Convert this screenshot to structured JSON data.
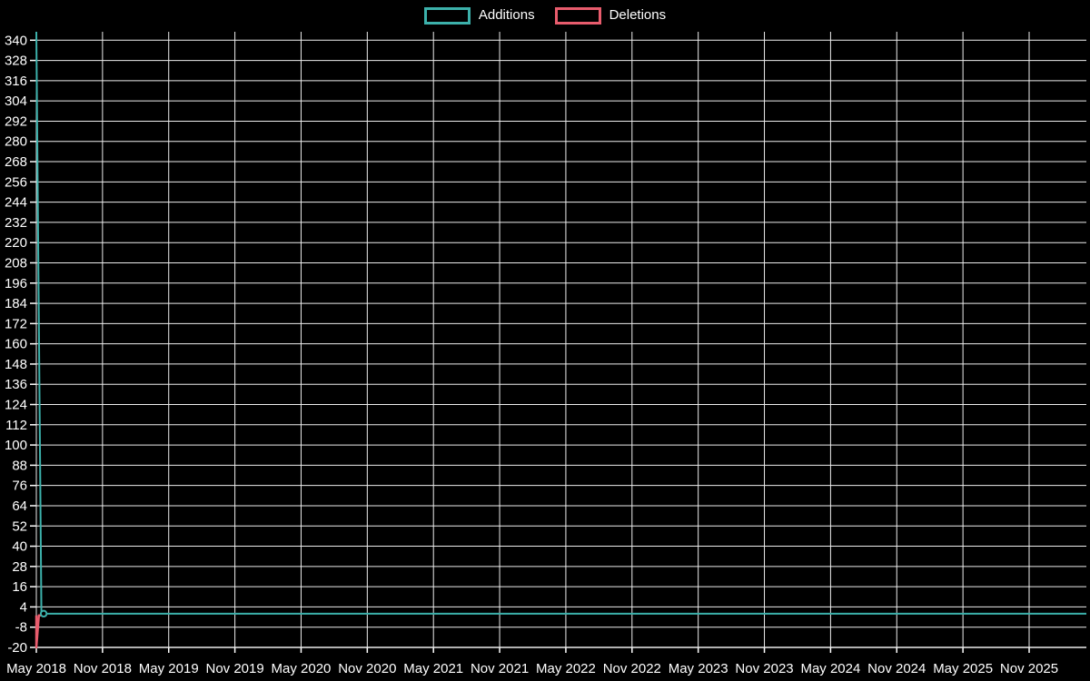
{
  "legend": {
    "items": [
      {
        "label": "Additions",
        "color": "#3cb1ab"
      },
      {
        "label": "Deletions",
        "color": "#e85c6d"
      }
    ]
  },
  "chart_data": {
    "type": "line",
    "title": "",
    "xlabel": "",
    "ylabel": "",
    "background_color": "#000000",
    "grid_color": "#ededed",
    "text_color": "#ffffff",
    "grid": "on",
    "legend_position": "top-center",
    "ylim": [
      -20,
      345
    ],
    "y_ticks": [
      340,
      328,
      316,
      304,
      292,
      280,
      268,
      256,
      244,
      232,
      220,
      208,
      196,
      184,
      172,
      160,
      148,
      136,
      124,
      112,
      100,
      88,
      76,
      64,
      52,
      40,
      28,
      16,
      4,
      -8,
      -20
    ],
    "x_tick_labels": [
      "May 2018",
      "Nov 2018",
      "May 2019",
      "Nov 2019",
      "May 2020",
      "Nov 2020",
      "May 2021",
      "Nov 2021",
      "May 2022",
      "Nov 2022",
      "May 2023",
      "Nov 2023",
      "May 2024",
      "Nov 2024",
      "May 2025",
      "Nov 2025"
    ],
    "series": [
      {
        "name": "Deletions",
        "color": "#e85c6d",
        "line_width": 2.5,
        "points": [
          {
            "week": 0,
            "value": -1
          },
          {
            "week": 0,
            "value": -20
          },
          {
            "week": 1,
            "value": -1
          },
          {
            "week": 4,
            "value": -1
          }
        ]
      },
      {
        "name": "Additions",
        "color": "#3cb1ab",
        "line_width": 2,
        "points": [
          {
            "week": 0,
            "value": 345
          },
          {
            "week": 2,
            "value": 0
          },
          {
            "week": 414,
            "value": 0
          }
        ],
        "marker": {
          "week": 2,
          "value": 0
        }
      }
    ]
  }
}
